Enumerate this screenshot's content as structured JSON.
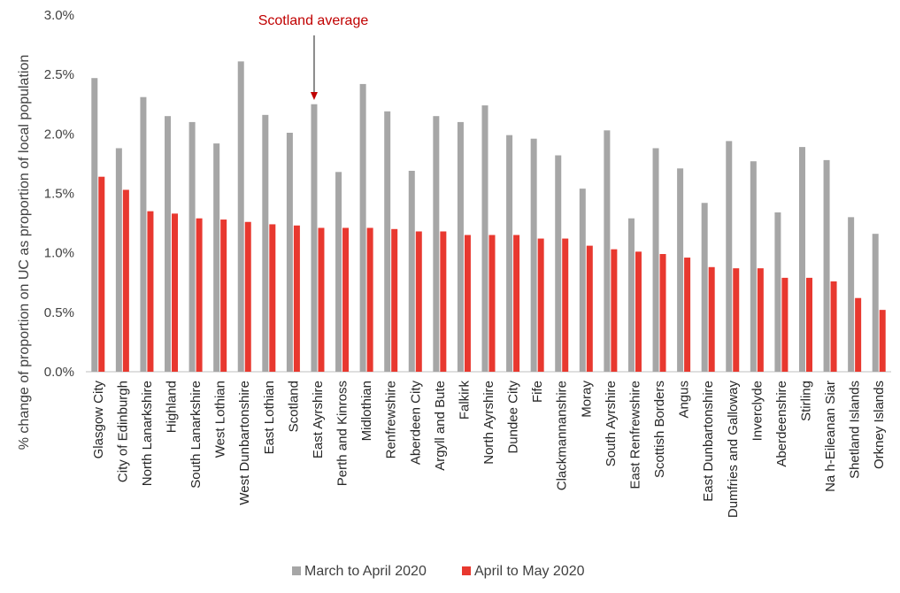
{
  "chart_data": {
    "type": "bar",
    "title": "",
    "xlabel": "",
    "ylabel": "% change of proportion on UC as proportion of local population",
    "ylim": [
      0,
      0.03
    ],
    "yticks": [
      0,
      0.005,
      0.01,
      0.015,
      0.02,
      0.025,
      0.03
    ],
    "ytick_labels": [
      "0.0%",
      "0.5%",
      "1.0%",
      "1.5%",
      "2.0%",
      "2.5%",
      "3.0%"
    ],
    "grid": false,
    "legend_position": "bottom",
    "categories": [
      "Glasgow City",
      "City of Edinburgh",
      "North Lanarkshire",
      "Highland",
      "South Lanarkshire",
      "West Lothian",
      "West Dunbartonshire",
      "East Lothian",
      "Scotland",
      "East Ayrshire",
      "Perth and Kinross",
      "Midlothian",
      "Renfrewshire",
      "Aberdeen City",
      "Argyll and Bute",
      "Falkirk",
      "North Ayrshire",
      "Dundee City",
      "Fife",
      "Clackmannanshire",
      "Moray",
      "South Ayrshire",
      "East Renfrewshire",
      "Scottish Borders",
      "Angus",
      "East Dunbartonshire",
      "Dumfries and Galloway",
      "Inverclyde",
      "Aberdeenshire",
      "Stirling",
      "Na h-Eileanan Siar",
      "Shetland Islands",
      "Orkney Islands"
    ],
    "series": [
      {
        "name": "March to April 2020",
        "color": "#a6a6a6",
        "values": [
          0.0247,
          0.0188,
          0.0231,
          0.0215,
          0.021,
          0.0192,
          0.0261,
          0.0216,
          0.0201,
          0.0225,
          0.0168,
          0.0242,
          0.0219,
          0.0169,
          0.0215,
          0.021,
          0.0224,
          0.0199,
          0.0196,
          0.0182,
          0.0154,
          0.0203,
          0.0129,
          0.0188,
          0.0171,
          0.0142,
          0.0194,
          0.0177,
          0.0134,
          0.0189,
          0.0178,
          0.013,
          0.0116
        ]
      },
      {
        "name": "April to May 2020",
        "color": "#e8382f",
        "values": [
          0.0164,
          0.0153,
          0.0135,
          0.0133,
          0.0129,
          0.0128,
          0.0126,
          0.0124,
          0.0123,
          0.0121,
          0.0121,
          0.0121,
          0.012,
          0.0118,
          0.0118,
          0.0115,
          0.0115,
          0.0115,
          0.0112,
          0.0112,
          0.0106,
          0.0103,
          0.0101,
          0.0099,
          0.0096,
          0.0088,
          0.0087,
          0.0087,
          0.0079,
          0.0079,
          0.0076,
          0.0062,
          0.0052
        ]
      }
    ],
    "annotations": [
      {
        "text": "Scotland average",
        "color": "#c00000",
        "target_category": "East Ayrshire"
      }
    ]
  }
}
